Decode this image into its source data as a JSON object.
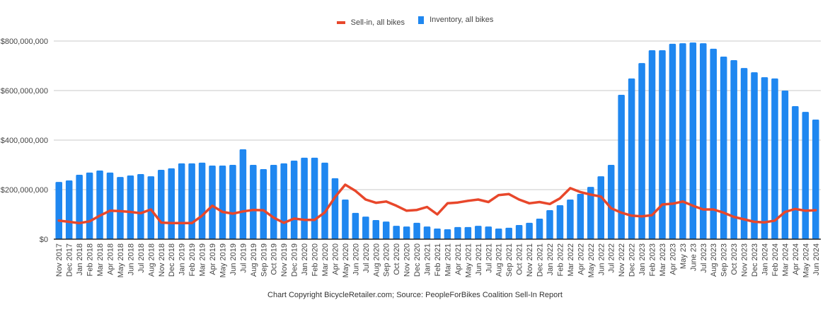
{
  "chart_data": {
    "type": "bar+line",
    "title": "",
    "footer": "Chart Copyright BicycleRetailer.com; Source: PeopleForBikes Coalition Sell-In Report",
    "legend_position": "top",
    "grid": true,
    "ylim": [
      0,
      800000000
    ],
    "y_ticks": [
      0,
      200000000,
      400000000,
      600000000,
      800000000
    ],
    "y_tick_labels": [
      "$0",
      "$200,000,000",
      "$400,000,000",
      "$600,000,000",
      "$800,000,000"
    ],
    "colors": {
      "sell_in": "#e8472b",
      "inventory": "#1f87f0"
    },
    "categories": [
      "Nov 2017",
      "Dec 2017",
      "Jan 2018",
      "Feb 2018",
      "Mar 2018",
      "Apr 2018",
      "May 2018",
      "Jun 2018",
      "Jul 2018",
      "Aug 2018",
      "Nov 2018",
      "Dec 2018",
      "Jan 2019",
      "Feb 2019",
      "Mar 2019",
      "Apr 2019",
      "May 2019",
      "Jun 2019",
      "Jul 2019",
      "Aug 2019",
      "Sep 2019",
      "Oct 2019",
      "Nov 2019",
      "Dec 2019",
      "Jan 2020",
      "Feb 2020",
      "Mar 2020",
      "Apr 2020",
      "May 2020",
      "Jun 2020",
      "Jul 2020",
      "Aug 2020",
      "Sep 2020",
      "Oct 2020",
      "Nov 2020",
      "Dec 2020",
      "Jan 2021",
      "Feb 2021",
      "Mar 2021",
      "Apr 2021",
      "May 2021",
      "Jun 2021",
      "Jul 2021",
      "Aug 2021",
      "Sep 2021",
      "Oct 2021",
      "Nov 2021",
      "Dec 2021",
      "Jan 2022",
      "Feb 2022",
      "Mar 2022",
      "Apr 2022",
      "May 2022",
      "Jun 2022",
      "Jul 2022",
      "Nov 2022",
      "Dec 2022",
      "Jan 2023",
      "Feb 2023",
      "Mar 2023",
      "Apr 2023",
      "May 23",
      "June 23",
      "Jul 2023",
      "Aug 2023",
      "Sep 2023",
      "Oct 2023",
      "Nov 2023",
      "Dec 2023",
      "Jan 2024",
      "Feb 2024",
      "Mar 2024",
      "Apr 2024",
      "May 2024",
      "Jun 2024"
    ],
    "series": [
      {
        "name": "Sell-in, all bikes",
        "type": "line",
        "values": [
          75000000,
          70000000,
          65000000,
          72000000,
          95000000,
          115000000,
          113000000,
          110000000,
          105000000,
          120000000,
          67000000,
          65000000,
          65000000,
          65000000,
          95000000,
          135000000,
          110000000,
          103000000,
          112000000,
          118000000,
          117000000,
          87000000,
          66000000,
          83000000,
          78000000,
          78000000,
          108000000,
          170000000,
          220000000,
          195000000,
          160000000,
          147000000,
          152000000,
          135000000,
          115000000,
          118000000,
          130000000,
          100000000,
          145000000,
          148000000,
          155000000,
          160000000,
          150000000,
          178000000,
          182000000,
          160000000,
          145000000,
          150000000,
          142000000,
          165000000,
          206000000,
          190000000,
          180000000,
          172000000,
          125000000,
          107000000,
          95000000,
          92000000,
          97000000,
          140000000,
          143000000,
          152000000,
          135000000,
          120000000,
          120000000,
          107000000,
          90000000,
          80000000,
          70000000,
          68000000,
          75000000,
          110000000,
          122000000,
          115000000,
          117000000
        ]
      },
      {
        "name": "Inventory, all bikes",
        "type": "bar",
        "values": [
          231000000,
          237000000,
          260000000,
          269000000,
          277000000,
          269000000,
          251000000,
          257000000,
          263000000,
          254000000,
          280000000,
          286000000,
          306000000,
          306000000,
          309000000,
          297000000,
          297000000,
          300000000,
          363000000,
          300000000,
          283000000,
          300000000,
          306000000,
          317000000,
          329000000,
          329000000,
          309000000,
          246000000,
          160000000,
          106000000,
          91000000,
          77000000,
          71000000,
          54000000,
          51000000,
          66000000,
          51000000,
          43000000,
          40000000,
          49000000,
          49000000,
          54000000,
          51000000,
          43000000,
          46000000,
          57000000,
          66000000,
          83000000,
          117000000,
          137000000,
          160000000,
          183000000,
          211000000,
          254000000,
          300000000,
          583000000,
          649000000,
          711000000,
          763000000,
          763000000,
          789000000,
          791000000,
          794000000,
          791000000,
          769000000,
          737000000,
          723000000,
          691000000,
          674000000,
          654000000,
          649000000,
          600000000,
          537000000,
          514000000,
          483000000
        ]
      }
    ]
  }
}
